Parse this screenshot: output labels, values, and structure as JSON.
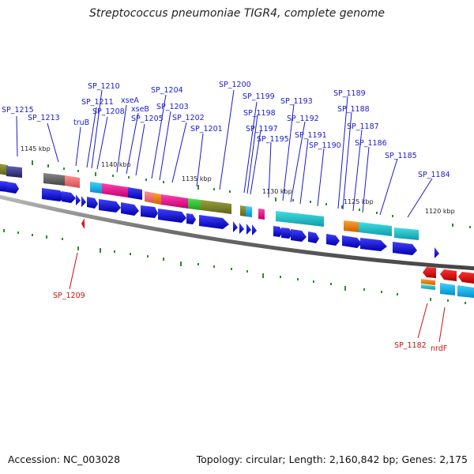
{
  "title": "Streptococcus pneumoniae TIGR4, complete genome",
  "footer": {
    "accession": "Accession: NC_003028",
    "summary": "Topology: circular; Length: 2,160,842 bp; Genes: 2,175"
  },
  "kbp_ticks": [
    "1145 kbp",
    "1140 kbp",
    "1135 kbp",
    "1130 kbp",
    "1125 kbp",
    "1120 kbp"
  ],
  "gene_labels_top": [
    "SP_1215",
    "SP_1213",
    "truB",
    "SP_1211",
    "SP_1210",
    "SP_1208",
    "xseA",
    "xseB",
    "SP_1205",
    "SP_1204",
    "SP_1203",
    "SP_1202",
    "SP_1201",
    "SP_1200",
    "SP_1199",
    "SP_1198",
    "SP_1197",
    "SP_1195",
    "SP_1193",
    "SP_1192",
    "SP_1191",
    "SP_1190",
    "SP_1189",
    "SP_1188",
    "SP_1187",
    "SP_1186",
    "SP_1185",
    "SP_1184"
  ],
  "gene_labels_bottom": [
    "SP_1209",
    "SP_1182",
    "nrdF"
  ],
  "colors": {
    "forward_label": "#1a1acc",
    "reverse_label": "#cc1111",
    "forward_gene": "#0000dd",
    "reverse_gene": "#dd0000",
    "backbone": "#7a7a7a",
    "tick_marks": "#2e8b2e"
  }
}
